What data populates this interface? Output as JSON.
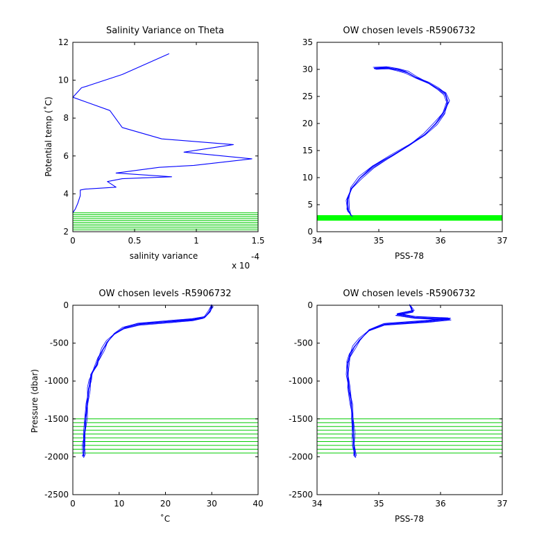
{
  "chart_data": [
    {
      "id": "p1",
      "type": "line",
      "title": "Salinity Variance on Theta",
      "xlabel": "salinity variance",
      "ylabel": "Potential temp (˚C)",
      "x_exponent_label": "x 10",
      "x_exponent": "-4",
      "xlim": [
        0,
        1.5
      ],
      "ylim": [
        2,
        12
      ],
      "xticks": [
        0,
        0.5,
        1,
        1.5
      ],
      "xtick_labels": [
        "0",
        "0.5",
        "1",
        "1.5"
      ],
      "yticks": [
        2,
        4,
        6,
        8,
        10,
        12
      ],
      "ytick_labels": [
        "2",
        "4",
        "6",
        "8",
        "10",
        "12"
      ],
      "series": [
        {
          "color": "#0000ff",
          "x": [
            0.78,
            0.4,
            0.12,
            0.07,
            0.0,
            0.3,
            0.4,
            0.72,
            1.3,
            0.9,
            1.45,
            0.98,
            0.7,
            0.35,
            0.8,
            0.4,
            0.28,
            0.35,
            0.1,
            0.06,
            0.06,
            0.04,
            0.02,
            0.0
          ],
          "y": [
            11.4,
            10.3,
            9.7,
            9.6,
            9.1,
            8.4,
            7.5,
            6.9,
            6.6,
            6.2,
            5.85,
            5.5,
            5.4,
            5.1,
            4.9,
            4.8,
            4.65,
            4.35,
            4.25,
            4.2,
            3.9,
            3.5,
            3.2,
            3.0
          ]
        }
      ],
      "hlines": {
        "color": "#00cc00",
        "y": [
          2.1,
          2.2,
          2.3,
          2.4,
          2.5,
          2.6,
          2.7,
          2.8,
          2.9,
          3.0
        ]
      }
    },
    {
      "id": "p2",
      "type": "line",
      "title": "OW chosen levels -R5906732",
      "xlabel": "PSS-78",
      "ylabel": "",
      "xlim": [
        34,
        37
      ],
      "ylim": [
        0,
        35
      ],
      "xticks": [
        34,
        35,
        36,
        37
      ],
      "xtick_labels": [
        "34",
        "35",
        "36",
        "37"
      ],
      "yticks": [
        0,
        5,
        10,
        15,
        20,
        25,
        30,
        35
      ],
      "ytick_labels": [
        "0",
        "5",
        "10",
        "15",
        "20",
        "25",
        "30",
        "35"
      ],
      "series": [
        {
          "color": "#0000ff",
          "x": [
            34.55,
            34.5,
            34.5,
            34.56,
            34.7,
            34.9,
            35.2,
            35.5,
            35.75,
            35.92,
            36.05,
            36.12,
            36.08,
            35.95,
            35.8,
            35.6,
            35.45,
            35.3,
            35.15,
            34.92
          ],
          "y": [
            3.0,
            4.0,
            6.0,
            8.0,
            10.0,
            12.0,
            14.0,
            16.0,
            18.0,
            20.0,
            22.0,
            24.0,
            25.5,
            26.5,
            27.5,
            28.5,
            29.5,
            30.0,
            30.3,
            30.2
          ]
        }
      ],
      "hlines": {
        "color": "#00ff00",
        "y": [
          2.1,
          2.2,
          2.3,
          2.4,
          2.5,
          2.6,
          2.7,
          2.8,
          2.9,
          3.0
        ]
      }
    },
    {
      "id": "p3",
      "type": "line",
      "title": "OW chosen levels -R5906732",
      "xlabel": "˚C",
      "ylabel": "Pressure (dbar)",
      "xlim": [
        0,
        40
      ],
      "ylim": [
        -2500,
        0
      ],
      "xticks": [
        0,
        10,
        20,
        30,
        40
      ],
      "xtick_labels": [
        "0",
        "10",
        "20",
        "30",
        "40"
      ],
      "yticks": [
        -2500,
        -2000,
        -1500,
        -1000,
        -500,
        0
      ],
      "ytick_labels": [
        "-2500",
        "-2000",
        "-1500",
        "-1000",
        "-500",
        "0"
      ],
      "series": [
        {
          "color": "#0000ff",
          "x": [
            30.0,
            29.5,
            28.5,
            26.0,
            20.0,
            14.0,
            11.0,
            9.0,
            7.5,
            6.5,
            5.5,
            5.0,
            4.2,
            3.8,
            3.4,
            3.0,
            2.8,
            2.6,
            2.4,
            2.3,
            2.2
          ],
          "y": [
            0,
            -80,
            -160,
            -190,
            -220,
            -250,
            -300,
            -380,
            -480,
            -580,
            -700,
            -800,
            -900,
            -1000,
            -1100,
            -1300,
            -1500,
            -1700,
            -1850,
            -1950,
            -2000
          ]
        }
      ],
      "hlines": {
        "color": "#00cc00",
        "y": [
          -1500,
          -1550,
          -1600,
          -1650,
          -1700,
          -1750,
          -1800,
          -1850,
          -1900,
          -1950
        ]
      }
    },
    {
      "id": "p4",
      "type": "line",
      "title": "OW chosen levels -R5906732",
      "xlabel": "PSS-78",
      "ylabel": "",
      "xlim": [
        34,
        37
      ],
      "ylim": [
        -2500,
        0
      ],
      "xticks": [
        34,
        35,
        36,
        37
      ],
      "xtick_labels": [
        "34",
        "35",
        "36",
        "37"
      ],
      "yticks": [
        -2500,
        -2000,
        -1500,
        -1000,
        -500,
        0
      ],
      "ytick_labels": [
        "-2500",
        "-2000",
        "-1500",
        "-1000",
        "-500",
        "0"
      ],
      "series": [
        {
          "color": "#0000ff",
          "x": [
            35.5,
            35.55,
            35.3,
            35.6,
            36.15,
            35.8,
            35.1,
            34.85,
            34.7,
            34.6,
            34.53,
            34.5,
            34.5,
            34.52,
            34.55,
            34.57,
            34.59,
            34.6,
            34.62
          ],
          "y": [
            0,
            -80,
            -120,
            -160,
            -180,
            -210,
            -250,
            -330,
            -450,
            -550,
            -650,
            -750,
            -900,
            -1100,
            -1300,
            -1500,
            -1700,
            -1850,
            -2000
          ]
        }
      ],
      "hlines": {
        "color": "#00cc00",
        "y": [
          -1500,
          -1550,
          -1600,
          -1650,
          -1700,
          -1750,
          -1800,
          -1850,
          -1900,
          -1950
        ]
      }
    }
  ]
}
